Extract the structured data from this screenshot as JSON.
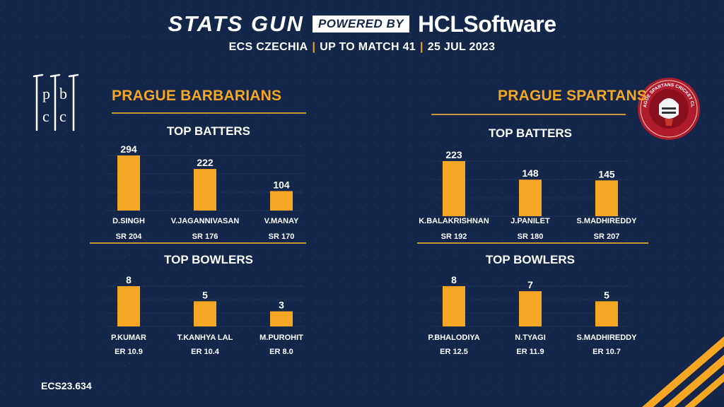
{
  "header": {
    "brand": "STATS GUN",
    "powered_by": "POWERED BY",
    "sponsor_prefix": "HCL",
    "sponsor_suffix": "Software",
    "subtitle_parts": [
      "ECS CZECHIA",
      "UP TO MATCH 41",
      "25 JUL 2023"
    ]
  },
  "colors": {
    "background": "#14264a",
    "accent": "#f5a623",
    "bar": "#f5a623",
    "rule": "#c8963a"
  },
  "teams": [
    {
      "name": "PRAGUE BARBARIANS",
      "logo_icon": "pbc-logo-icon"
    },
    {
      "name": "PRAGUE SPARTANS",
      "logo_icon": "prague-spartans-crest-icon",
      "logo_text": "PRAGUE SPARTANS CRICKET CLUB"
    }
  ],
  "sections": {
    "batters_title": "TOP BATTERS",
    "bowlers_title": "TOP BOWLERS"
  },
  "chart_data": [
    {
      "type": "bar",
      "title": "TOP BATTERS",
      "team": "PRAGUE BARBARIANS",
      "categories": [
        "D.SINGH",
        "V.JAGANNIVASAN",
        "V.MANAY"
      ],
      "values": [
        294,
        222,
        104
      ],
      "sub_labels": [
        "SR 204",
        "SR 176",
        "SR 170"
      ],
      "ylim": [
        0,
        294
      ]
    },
    {
      "type": "bar",
      "title": "TOP BATTERS",
      "team": "PRAGUE SPARTANS",
      "categories": [
        "K.BALAKRISHNAN",
        "J.PANILET",
        "S.MADHIREDDY"
      ],
      "values": [
        223,
        148,
        145
      ],
      "sub_labels": [
        "SR 192",
        "SR 180",
        "SR 207"
      ],
      "ylim": [
        0,
        223
      ]
    },
    {
      "type": "bar",
      "title": "TOP BOWLERS",
      "team": "PRAGUE BARBARIANS",
      "categories": [
        "P.KUMAR",
        "T.KANHYA LAL",
        "M.PUROHIT"
      ],
      "values": [
        8,
        5,
        3
      ],
      "sub_labels": [
        "ER 10.9",
        "ER 10.4",
        "ER 8.0"
      ],
      "ylim": [
        0,
        8
      ]
    },
    {
      "type": "bar",
      "title": "TOP BOWLERS",
      "team": "PRAGUE SPARTANS",
      "categories": [
        "P.BHALODIYA",
        "N.TYAGI",
        "S.MADHIREDDY"
      ],
      "values": [
        8,
        7,
        5
      ],
      "sub_labels": [
        "ER 12.5",
        "ER 11.9",
        "ER 10.7"
      ],
      "ylim": [
        0,
        8
      ]
    }
  ],
  "footer": {
    "code": "ECS23.634"
  }
}
